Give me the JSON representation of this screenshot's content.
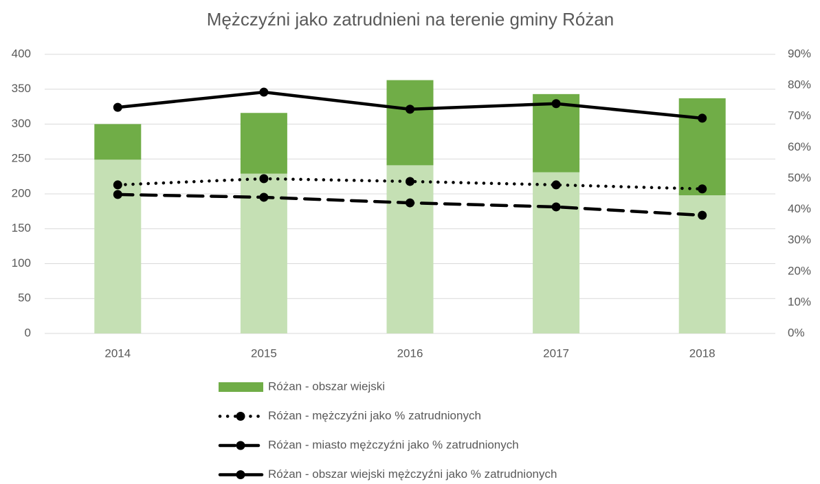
{
  "chart_data": {
    "type": "bar",
    "title": "Mężczyźni jako zatrudnieni na terenie gminy Różan",
    "categories": [
      "2014",
      "2015",
      "2016",
      "2017",
      "2018"
    ],
    "series": [
      {
        "color": "#c5e0b4",
        "values": [
          249,
          229,
          241,
          231,
          198
        ]
      },
      {
        "name": "Różan - obszar wiejski",
        "color": "#70ad47",
        "values": [
          51,
          87,
          122,
          112,
          139
        ]
      },
      {
        "name": "Różan - mężczyźni jako % zatrudnionych",
        "type": "line",
        "axis": "y2",
        "dash": "dotted",
        "color": "#000000",
        "values": [
          47.9,
          49.9,
          49.0,
          47.9,
          46.6
        ]
      },
      {
        "name": "Różan - miasto  mężczyźni jako % zatrudnionych",
        "type": "line",
        "axis": "y2",
        "dash": "dashed",
        "color": "#000000",
        "values": [
          44.8,
          43.9,
          42.1,
          40.8,
          38.1
        ]
      },
      {
        "name": "Różan - obszar wiejski mężczyźni jako % zatrudnionych",
        "type": "line",
        "axis": "y2",
        "dash": "solid",
        "color": "#000000",
        "values": [
          72.9,
          77.8,
          72.3,
          74.1,
          69.4
        ]
      }
    ],
    "ylim": [
      0,
      400
    ],
    "yticks": [
      0,
      50,
      100,
      150,
      200,
      250,
      300,
      350,
      400
    ],
    "y2lim": [
      0,
      90
    ],
    "y2ticks": [
      {
        "value": 0,
        "label": "0%"
      },
      {
        "value": 10,
        "label": "10%"
      },
      {
        "value": 20,
        "label": "20%"
      },
      {
        "value": 30,
        "label": "30%"
      },
      {
        "value": 40,
        "label": "40%"
      },
      {
        "value": 50,
        "label": "50%"
      },
      {
        "value": 60,
        "label": "60%"
      },
      {
        "value": 70,
        "label": "70%"
      },
      {
        "value": 80,
        "label": "80%"
      },
      {
        "value": 90,
        "label": "90%"
      }
    ],
    "grid": true,
    "legend": "bottom",
    "stacked": true
  }
}
